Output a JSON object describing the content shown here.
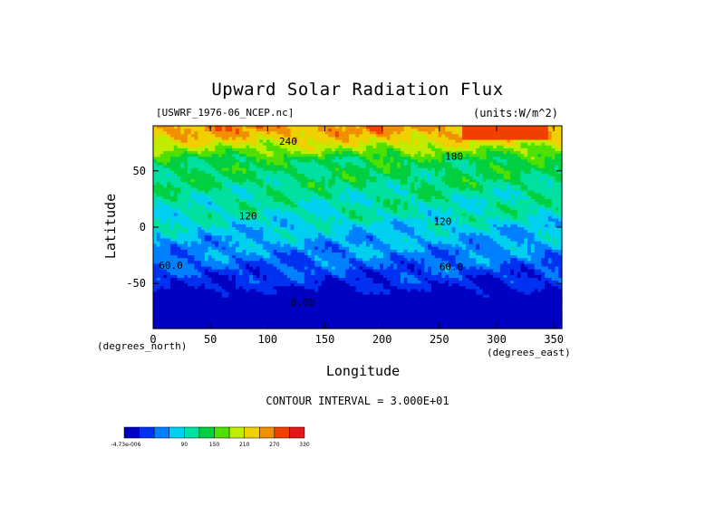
{
  "chart_data": {
    "type": "heatmap",
    "title": "Upward Solar Radiation Flux",
    "source": "[USWRF_1976-06_NCEP.nc]",
    "units": "(units:W/m^2)",
    "xlabel": "Longitude",
    "ylabel": "Latitude",
    "x_unit": "(degrees_east)",
    "y_unit": "(degrees_north)",
    "xlim": [
      0,
      357
    ],
    "ylim": [
      -90,
      90
    ],
    "xticks": [
      0,
      50,
      100,
      150,
      200,
      250,
      300,
      350
    ],
    "yticks": [
      50,
      0,
      -50
    ],
    "contour_interval": "CONTOUR INTERVAL = 3.000E+01",
    "contour_labels": [
      {
        "text": "60.0",
        "lon": 5,
        "lat": -37
      },
      {
        "text": "60.0",
        "lon": 250,
        "lat": -38
      },
      {
        "text": "0.00",
        "lon": 120,
        "lat": -70
      },
      {
        "text": "120",
        "lon": 245,
        "lat": 2
      },
      {
        "text": "120",
        "lon": 75,
        "lat": 7
      },
      {
        "text": "240",
        "lon": 110,
        "lat": 73
      },
      {
        "text": "180",
        "lon": 255,
        "lat": 60
      }
    ],
    "lat_bands": [
      {
        "lat": 90,
        "value": 285
      },
      {
        "lat": 80,
        "value": 262
      },
      {
        "lat": 70,
        "value": 215
      },
      {
        "lat": 60,
        "value": 165
      },
      {
        "lat": 50,
        "value": 155
      },
      {
        "lat": 40,
        "value": 150
      },
      {
        "lat": 30,
        "value": 135
      },
      {
        "lat": 20,
        "value": 130
      },
      {
        "lat": 10,
        "value": 125
      },
      {
        "lat": 0,
        "value": 105
      },
      {
        "lat": -10,
        "value": 95
      },
      {
        "lat": -20,
        "value": 80
      },
      {
        "lat": -30,
        "value": 68
      },
      {
        "lat": -40,
        "value": 50
      },
      {
        "lat": -50,
        "value": 35
      },
      {
        "lat": -60,
        "value": 20
      },
      {
        "lat": -70,
        "value": 5
      },
      {
        "lat": -80,
        "value": 0
      },
      {
        "lat": -90,
        "value": 0
      }
    ],
    "colorbar": {
      "labels": [
        "-4.73e-006",
        "90",
        "150",
        "210",
        "270",
        "330"
      ],
      "levels": [
        0,
        30,
        60,
        90,
        120,
        150,
        180,
        210,
        240,
        270,
        300,
        330
      ],
      "colors": [
        "#0000c0",
        "#0030f0",
        "#0080ff",
        "#00d0f0",
        "#00e0a0",
        "#00d040",
        "#50e000",
        "#c0ec00",
        "#f0d000",
        "#f09000",
        "#f04000",
        "#e01818"
      ]
    }
  }
}
